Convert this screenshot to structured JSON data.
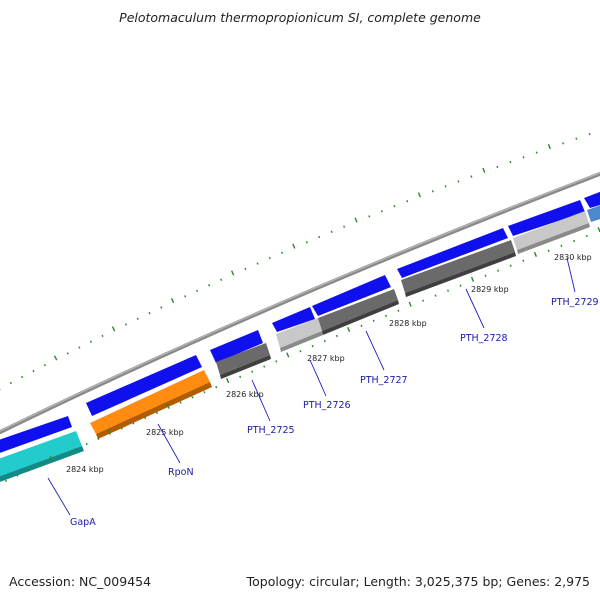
{
  "title": "Pelotomaculum thermopropionicum SI, complete genome",
  "footer": {
    "accession": "Accession: NC_009454",
    "summary": "Topology: circular; Length: 3,025,375 bp; Genes: 2,975"
  },
  "colors": {
    "backbone": "#8a8a8a",
    "forward_cds": "#1010ee",
    "reverse_gray_dark": "#6a6a6a",
    "reverse_gray_light": "#c8c8c8",
    "rpon": "#ff8c10",
    "gapa": "#22cccc",
    "ticks": "#2a8a2a"
  },
  "scale": {
    "labels": [
      "2824 kbp",
      "2825 kbp",
      "2826 kbp",
      "2827 kbp",
      "2828 kbp",
      "2829 kbp",
      "2830 kbp"
    ]
  },
  "genes": {
    "labels": [
      "GapA",
      "RpoN",
      "PTH_2725",
      "PTH_2726",
      "PTH_2727",
      "PTH_2728",
      "PTH_2729"
    ]
  }
}
